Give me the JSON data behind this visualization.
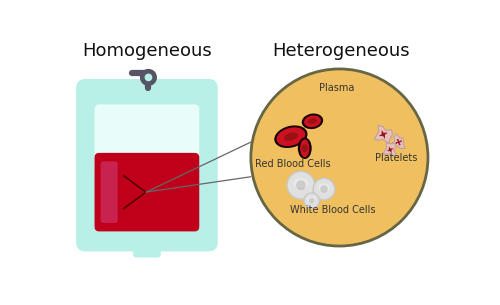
{
  "bg_color": "#ffffff",
  "title_homogeneous": "Homogeneous",
  "title_heterogeneous": "Heterogeneous",
  "title_fontsize": 13,
  "label_plasma": "Plasma",
  "label_rbc": "Red Blood Cells",
  "label_wbc": "White Blood Cells",
  "label_platelets": "Platelets",
  "bag_color": "#b8f0e8",
  "bag_inner_color": "#d8f8f4",
  "blood_color": "#c0001a",
  "blood_dark": "#8b0000",
  "blood_pink_highlight": "#cc3366",
  "circle_bg": "#f0c060",
  "circle_border": "#666644",
  "rbc_dark": "#1a0000",
  "rbc_red": "#cc1122",
  "rbc_mid": "#991111",
  "wbc_outer": "#e0e0e0",
  "wbc_inner": "#c8c8c8",
  "wbc_center": "#b0b0b0",
  "platelet_body": "#e8c0b8",
  "platelet_dark": "#991122",
  "label_color": "#333333",
  "connector_color": "#666666",
  "tube_color": "#555566",
  "hook_color": "#555566"
}
